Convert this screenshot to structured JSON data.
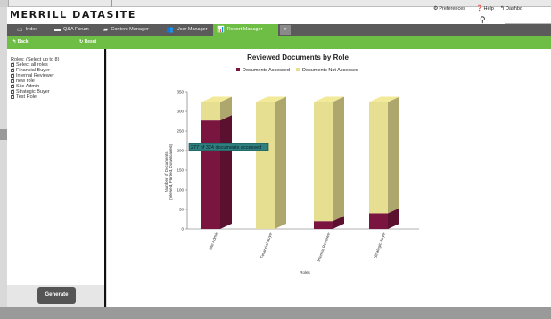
{
  "brand": {
    "logo_text": "MERRILL DATASITE"
  },
  "utility": {
    "preferences": "Preferences",
    "help": "Help",
    "dashboard": "Dashbo"
  },
  "nav": {
    "tabs": [
      {
        "label": "Index",
        "icon": "monitor-icon"
      },
      {
        "label": "Q&A Forum",
        "icon": "chat-icon"
      },
      {
        "label": "Content Manager",
        "icon": "folder-icon"
      },
      {
        "label": "User Manager",
        "icon": "users-icon"
      },
      {
        "label": "Report Manager",
        "icon": "chart-icon",
        "active": true
      }
    ],
    "more": "▾"
  },
  "toolbar": {
    "back": "Back",
    "reset": "Reset"
  },
  "sidebar": {
    "roles_header": "Roles: (Select up to 8)",
    "roles": [
      "Select all roles",
      "Financial Buyer",
      "Internal Reviewer",
      "new role",
      "Site Admin",
      "Strategic Buyer",
      "Test Role"
    ],
    "generate": "Generate"
  },
  "colors": {
    "accessed": "#7a1540",
    "not_accessed": "#e6df92",
    "brand_green": "#6ebd45"
  },
  "chart_data": {
    "type": "bar",
    "title": "Reviewed Documents by Role",
    "stacked": true,
    "categories": [
      "Site Admin",
      "Financial Buyer",
      "Internal Reviewer",
      "Strategic Buyer"
    ],
    "series": [
      {
        "name": "Documents Accessed",
        "values": [
          277,
          0,
          20,
          40
        ]
      },
      {
        "name": "Documents Not Accessed",
        "values": [
          47,
          324,
          304,
          284
        ]
      }
    ],
    "ylabel": "Number of Documents\n(Viewed, Printed, Downloaded)",
    "ylabel_lines": [
      "Number of Documents",
      "(Viewed, Printed, Downloaded)"
    ],
    "xlabel": "Roles",
    "ylim": [
      0,
      350
    ],
    "yticks": [
      0,
      50,
      100,
      150,
      200,
      250,
      300,
      350
    ],
    "legend_position": "top-center",
    "tooltip": "277 of 324 documents accessed"
  }
}
